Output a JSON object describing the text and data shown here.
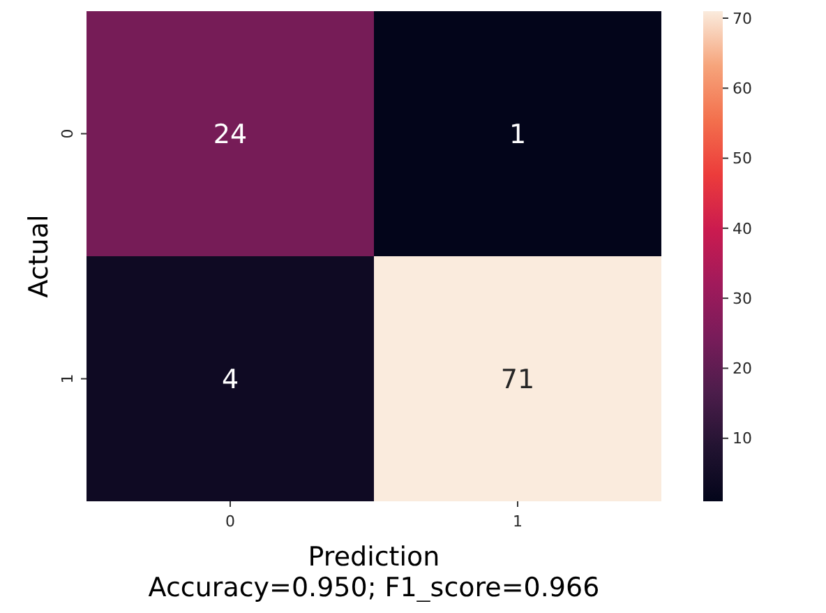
{
  "chart_data": {
    "type": "heatmap",
    "xlabel": "Prediction",
    "ylabel": "Actual",
    "categories": [
      "0",
      "1"
    ],
    "y_categories": [
      "0",
      "1"
    ],
    "cells": [
      [
        24,
        1
      ],
      [
        4,
        71
      ]
    ],
    "data_labels": true,
    "clim": [
      1,
      71
    ],
    "cticks": [
      10,
      20,
      30,
      40,
      50,
      60,
      70
    ],
    "annotations": [
      "Accuracy=0.950; F1_score=0.966"
    ]
  }
}
